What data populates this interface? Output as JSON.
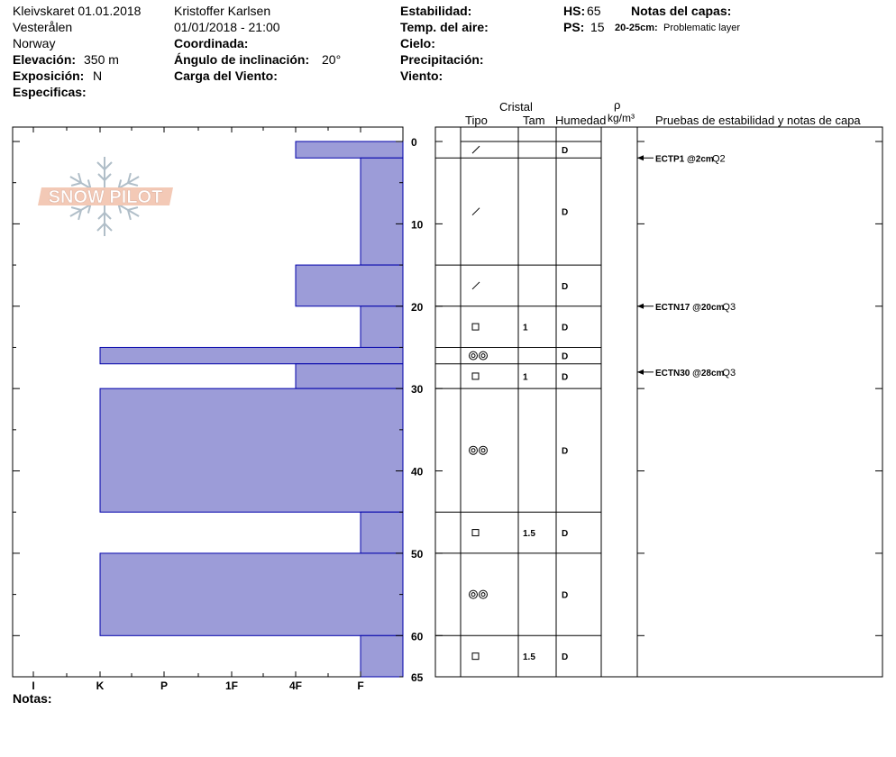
{
  "header": {
    "location": "Kleivskaret 01.01.2018",
    "region": "Vesterålen",
    "country": "Norway",
    "elevation_label": "Elevación:",
    "elevation_value": "350 m",
    "exposure_label": "Exposición:",
    "exposure_value": "N",
    "specifics_label": "Especificas:",
    "observer": "Kristoffer Karlsen",
    "datetime": "01/01/2018 - 21:00",
    "coordinate_label": "Coordinada:",
    "slope_label": "Ángulo de inclinación:",
    "slope_value": "20°",
    "wind_load_label": "Carga del Viento:",
    "stability_label": "Estabilidad:",
    "air_temp_label": "Temp. del aire:",
    "sky_label": "Cielo:",
    "precip_label": "Precipitación:",
    "wind_label": "Viento:",
    "hs_label": "HS:",
    "hs_value": "65",
    "ps_label": "PS:",
    "ps_value": "15",
    "layer_notes_label": "Notas del capas:",
    "layer_note_range": "20-25cm:",
    "layer_note_text": "Problematic layer",
    "notes_label": "Notas:"
  },
  "table_headers": {
    "crystal": "Cristal",
    "type": "Tipo",
    "size": "Tam",
    "moisture": "Humedad",
    "density_symbol": "ρ",
    "density_unit": "kg/m³",
    "tests": "Pruebas de estabilidad y notas de capa"
  },
  "logo_text": "SNOW PILOT",
  "colors": {
    "hardness_fill": "#9c9cd8",
    "hardness_stroke": "#0000aa"
  },
  "chart_data": {
    "type": "bar",
    "orientation": "horizontal",
    "depth_range": [
      0,
      65
    ],
    "depth_ticks": [
      "0",
      "10",
      "20",
      "30",
      "40",
      "50",
      "60",
      "65"
    ],
    "hardness_scale": [
      "I",
      "K",
      "P",
      "1F",
      "4F",
      "F"
    ],
    "layers": [
      {
        "top": 0,
        "bottom": 2,
        "hardness": "4F",
        "type": "dash",
        "size": "",
        "moisture": "D"
      },
      {
        "top": 2,
        "bottom": 15,
        "hardness": "F",
        "type": "dash",
        "size": "",
        "moisture": "D"
      },
      {
        "top": 15,
        "bottom": 20,
        "hardness": "4F",
        "type": "dash",
        "size": "",
        "moisture": "D"
      },
      {
        "top": 20,
        "bottom": 25,
        "hardness": "F",
        "type": "square",
        "size": "1",
        "moisture": "D"
      },
      {
        "top": 25,
        "bottom": 27,
        "hardness": "K",
        "type": "rounds",
        "size": "",
        "moisture": "D"
      },
      {
        "top": 27,
        "bottom": 30,
        "hardness": "4F",
        "type": "square",
        "size": "1",
        "moisture": "D"
      },
      {
        "top": 30,
        "bottom": 45,
        "hardness": "K",
        "type": "rounds",
        "size": "",
        "moisture": "D"
      },
      {
        "top": 45,
        "bottom": 50,
        "hardness": "F",
        "type": "square",
        "size": "1.5",
        "moisture": "D"
      },
      {
        "top": 50,
        "bottom": 60,
        "hardness": "K",
        "type": "rounds",
        "size": "",
        "moisture": "D"
      },
      {
        "top": 60,
        "bottom": 65,
        "hardness": "F",
        "type": "square",
        "size": "1.5",
        "moisture": "D"
      }
    ],
    "tests": [
      {
        "depth": 2,
        "name": "ECTP1 @2cm",
        "quality": "Q2"
      },
      {
        "depth": 20,
        "name": "ECTN17 @20cm",
        "quality": "Q3"
      },
      {
        "depth": 28,
        "name": "ECTN30 @28cm",
        "quality": "Q3"
      }
    ]
  }
}
